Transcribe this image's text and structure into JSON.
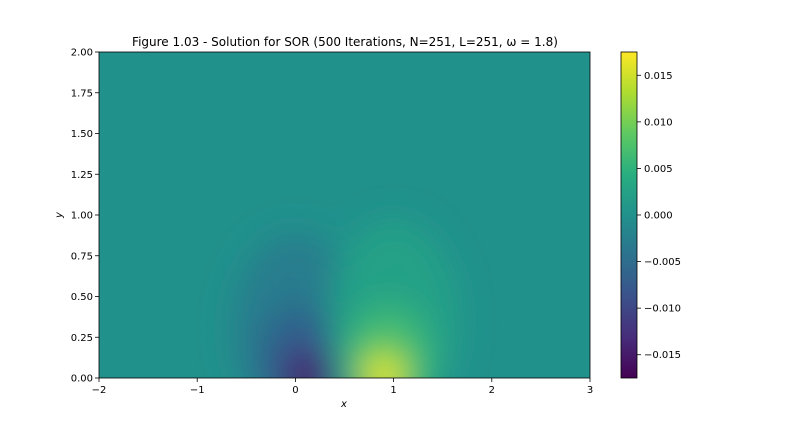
{
  "chart_data": {
    "type": "heatmap",
    "title": "Figure 1.03 - Solution for SOR (500 Iterations, N=251, L=251, ω = 1.8)",
    "xlabel": "x",
    "ylabel": "y",
    "xlim": [
      -2,
      3
    ],
    "ylim": [
      0,
      2
    ],
    "x_ticks": [
      "−2",
      "−1",
      "0",
      "1",
      "2",
      "3"
    ],
    "x_tick_values": [
      -2,
      -1,
      0,
      1,
      2,
      3
    ],
    "y_ticks": [
      "0.00",
      "0.25",
      "0.50",
      "0.75",
      "1.00",
      "1.25",
      "1.50",
      "1.75",
      "2.00"
    ],
    "y_tick_values": [
      0,
      0.25,
      0.5,
      0.75,
      1.0,
      1.25,
      1.5,
      1.75,
      2.0
    ],
    "colormap": "viridis",
    "colorbar": {
      "range": [
        -0.0175,
        0.0175
      ],
      "ticks": [
        "−0.015",
        "−0.010",
        "−0.005",
        "0.000",
        "0.005",
        "0.010",
        "0.015"
      ],
      "tick_values": [
        -0.015,
        -0.01,
        -0.005,
        0.0,
        0.005,
        0.01,
        0.015
      ]
    },
    "features": [
      {
        "kind": "minimum",
        "x": 0.1,
        "y": 0.0,
        "value": -0.0175
      },
      {
        "kind": "maximum",
        "x": 0.9,
        "y": 0.0,
        "value": 0.0175
      }
    ]
  }
}
